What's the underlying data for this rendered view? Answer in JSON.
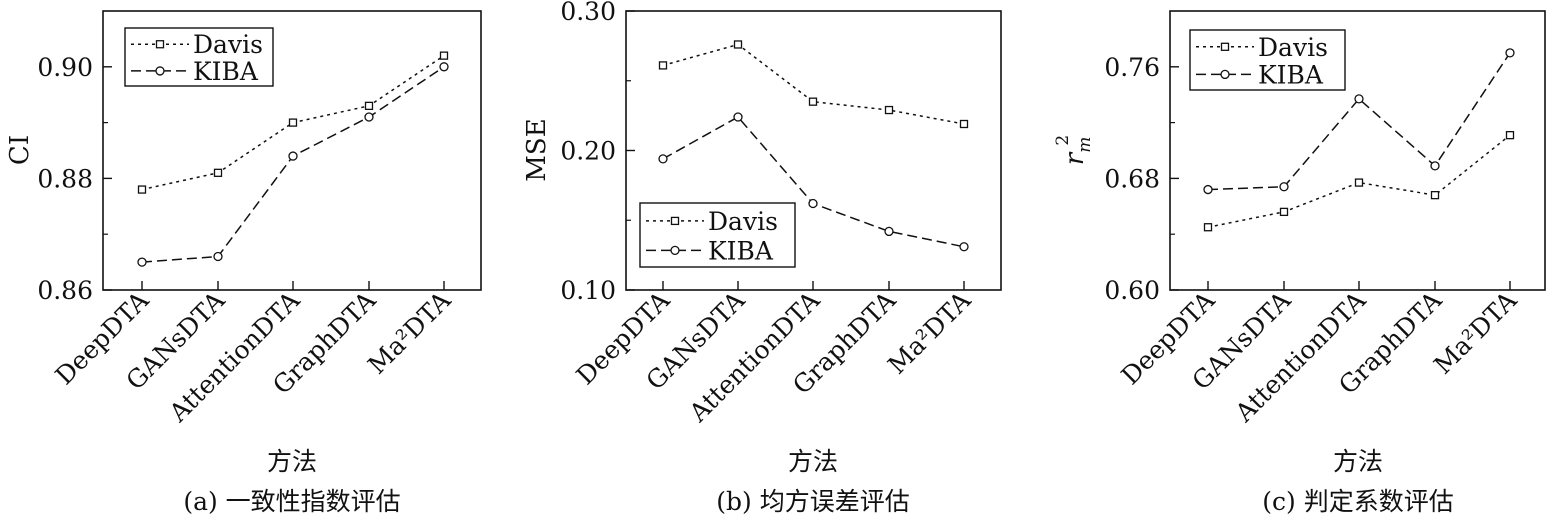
{
  "chart_data": [
    {
      "type": "line",
      "caption": "(a) 一致性指数评估",
      "xlabel": "方法",
      "ylabel": "CI",
      "categories": [
        "DeepDTA",
        "GANsDTA",
        "AttentionDTA",
        "GraphDTA",
        "Ma²DTA"
      ],
      "ylim": [
        0.86,
        0.91
      ],
      "yticks": [
        "0.86",
        "0.88",
        "0.90"
      ],
      "ytick_values": [
        0.86,
        0.88,
        0.9
      ],
      "legend_position": "top-left",
      "series": [
        {
          "name": "Davis",
          "style": "dotted",
          "marker": "square",
          "values": [
            0.878,
            0.881,
            0.89,
            0.893,
            0.902
          ]
        },
        {
          "name": "KIBA",
          "style": "dashed",
          "marker": "circle",
          "values": [
            0.865,
            0.866,
            0.884,
            0.891,
            0.9
          ]
        }
      ]
    },
    {
      "type": "line",
      "caption": "(b) 均方误差评估",
      "xlabel": "方法",
      "ylabel": "MSE",
      "categories": [
        "DeepDTA",
        "GANsDTA",
        "AttentionDTA",
        "GraphDTA",
        "Ma²DTA"
      ],
      "ylim": [
        0.1,
        0.3
      ],
      "yticks": [
        "0.10",
        "0.20",
        "0.30"
      ],
      "ytick_values": [
        0.1,
        0.2,
        0.3
      ],
      "legend_position": "bottom-left",
      "series": [
        {
          "name": "Davis",
          "style": "dotted",
          "marker": "square",
          "values": [
            0.261,
            0.276,
            0.235,
            0.229,
            0.219
          ]
        },
        {
          "name": "KIBA",
          "style": "dashed",
          "marker": "circle",
          "values": [
            0.194,
            0.224,
            0.162,
            0.142,
            0.131
          ]
        }
      ]
    },
    {
      "type": "line",
      "caption": "(c) 判定系数评估",
      "xlabel": "方法",
      "ylabel": "r_m^2",
      "ylabel_base": "r",
      "ylabel_sub": "m",
      "ylabel_sup": "2",
      "categories": [
        "DeepDTA",
        "GANsDTA",
        "AttentionDTA",
        "GraphDTA",
        "Ma²DTA"
      ],
      "ylim": [
        0.6,
        0.8
      ],
      "yticks": [
        "0.60",
        "0.68",
        "0.76"
      ],
      "ytick_values": [
        0.6,
        0.68,
        0.76
      ],
      "legend_position": "top-left",
      "series": [
        {
          "name": "Davis",
          "style": "dotted",
          "marker": "square",
          "values": [
            0.645,
            0.656,
            0.677,
            0.668,
            0.711
          ]
        },
        {
          "name": "KIBA",
          "style": "dashed",
          "marker": "circle",
          "values": [
            0.672,
            0.674,
            0.737,
            0.689,
            0.77
          ]
        }
      ]
    }
  ]
}
